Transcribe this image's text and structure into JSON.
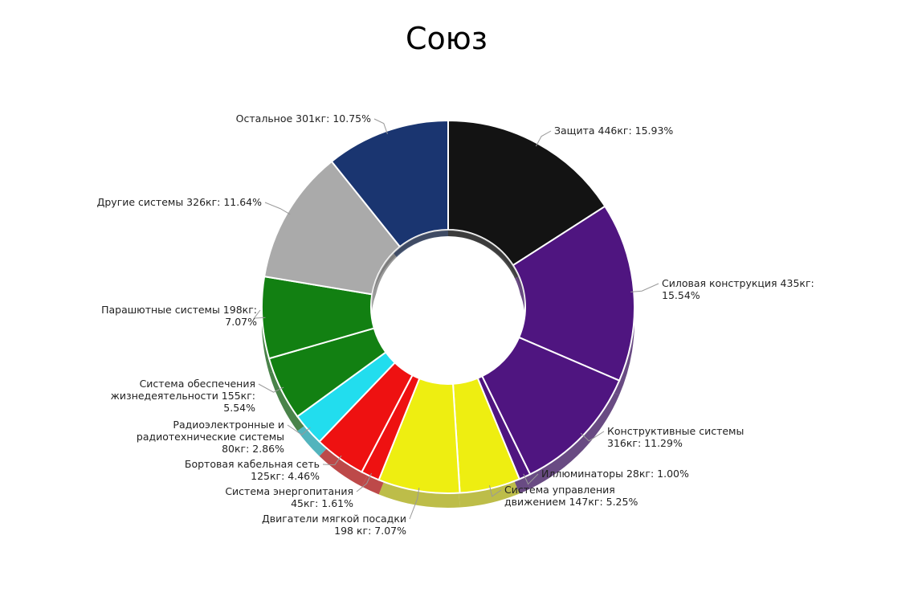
{
  "chart_data": {
    "type": "pie",
    "title": "Союз",
    "slices": [
      {
        "label_lines": [
          "Защита 446кг: 15.93%"
        ],
        "value": 446,
        "percent": 15.93,
        "color": "#131313"
      },
      {
        "label_lines": [
          "Силовая конструкция 435кг:",
          "15.54%"
        ],
        "value": 435,
        "percent": 15.54,
        "color": "#4f1580"
      },
      {
        "label_lines": [
          "Конструктивные системы",
          "316кг: 11.29%"
        ],
        "value": 316,
        "percent": 11.29,
        "color": "#4f1580"
      },
      {
        "label_lines": [
          "Иллюминаторы 28кг: 1.00%"
        ],
        "value": 28,
        "percent": 1.0,
        "color": "#4f1580"
      },
      {
        "label_lines": [
          "Система управления",
          "движением 147кг: 5.25%"
        ],
        "value": 147,
        "percent": 5.25,
        "color": "#eeee11"
      },
      {
        "label_lines": [
          "Двигатели мягкой посадки",
          "198 кг: 7.07%"
        ],
        "value": 198,
        "percent": 7.07,
        "color": "#eeee11"
      },
      {
        "label_lines": [
          "Система энергопитания",
          "45кг: 1.61%"
        ],
        "value": 45,
        "percent": 1.61,
        "color": "#ee1111"
      },
      {
        "label_lines": [
          "Бортовая кабельная сеть",
          "125кг: 4.46%"
        ],
        "value": 125,
        "percent": 4.46,
        "color": "#ee1111"
      },
      {
        "label_lines": [
          "Радиоэлектронные и",
          "радиотехнические системы",
          "80кг: 2.86%"
        ],
        "value": 80,
        "percent": 2.86,
        "color": "#22ddee"
      },
      {
        "label_lines": [
          "Система обеспечения",
          "жизнедеятельности 155кг:",
          "5.54%"
        ],
        "value": 155,
        "percent": 5.54,
        "color": "#128012"
      },
      {
        "label_lines": [
          "Парашютные системы 198кг:",
          "7.07%"
        ],
        "value": 198,
        "percent": 7.07,
        "color": "#128012"
      },
      {
        "label_lines": [
          "Другие системы 326кг: 11.64%"
        ],
        "value": 326,
        "percent": 11.64,
        "color": "#aaaaaa"
      },
      {
        "label_lines": [
          "Остальное 301кг: 10.75%"
        ],
        "value": 301,
        "percent": 10.75,
        "color": "#1a3570"
      }
    ],
    "donut": true,
    "style": "3d",
    "legend": "none",
    "labels": "outside-with-leader-lines"
  }
}
